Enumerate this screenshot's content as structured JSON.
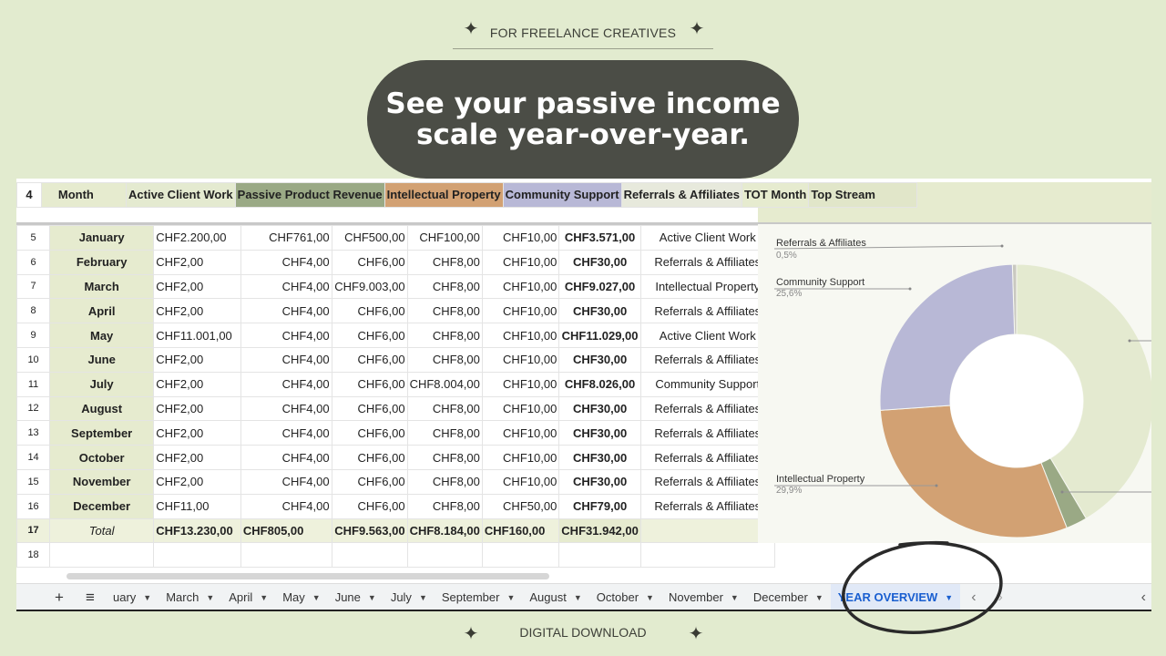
{
  "banner": {
    "top_label": "FOR FREELANCE CREATIVES",
    "headline_line1": "See your passive income",
    "headline_line2": "scale year-over-year.",
    "bottom_label": "DIGITAL DOWNLOAD"
  },
  "sheet": {
    "header_row_number": "4",
    "headers": [
      "Month",
      "Active Client Work",
      "Passive Product Revenue",
      "Intellectual Property",
      "Community Support",
      "Referrals & Affiliates",
      "TOT Month",
      "Top Stream"
    ],
    "rows": [
      {
        "n": "5",
        "month": "January",
        "active": "CHF2.200,00",
        "passive": "CHF761,00",
        "ip": "CHF500,00",
        "community": "CHF100,00",
        "referrals": "CHF10,00",
        "tot": "CHF3.571,00",
        "top": "Active Client Work"
      },
      {
        "n": "6",
        "month": "February",
        "active": "CHF2,00",
        "passive": "CHF4,00",
        "ip": "CHF6,00",
        "community": "CHF8,00",
        "referrals": "CHF10,00",
        "tot": "CHF30,00",
        "top": "Referrals & Affiliates"
      },
      {
        "n": "7",
        "month": "March",
        "active": "CHF2,00",
        "passive": "CHF4,00",
        "ip": "CHF9.003,00",
        "community": "CHF8,00",
        "referrals": "CHF10,00",
        "tot": "CHF9.027,00",
        "top": "Intellectual Property"
      },
      {
        "n": "8",
        "month": "April",
        "active": "CHF2,00",
        "passive": "CHF4,00",
        "ip": "CHF6,00",
        "community": "CHF8,00",
        "referrals": "CHF10,00",
        "tot": "CHF30,00",
        "top": "Referrals & Affiliates"
      },
      {
        "n": "9",
        "month": "May",
        "active": "CHF11.001,00",
        "passive": "CHF4,00",
        "ip": "CHF6,00",
        "community": "CHF8,00",
        "referrals": "CHF10,00",
        "tot": "CHF11.029,00",
        "top": "Active Client Work"
      },
      {
        "n": "10",
        "month": "June",
        "active": "CHF2,00",
        "passive": "CHF4,00",
        "ip": "CHF6,00",
        "community": "CHF8,00",
        "referrals": "CHF10,00",
        "tot": "CHF30,00",
        "top": "Referrals & Affiliates"
      },
      {
        "n": "11",
        "month": "July",
        "active": "CHF2,00",
        "passive": "CHF4,00",
        "ip": "CHF6,00",
        "community": "CHF8.004,00",
        "referrals": "CHF10,00",
        "tot": "CHF8.026,00",
        "top": "Community Support"
      },
      {
        "n": "12",
        "month": "August",
        "active": "CHF2,00",
        "passive": "CHF4,00",
        "ip": "CHF6,00",
        "community": "CHF8,00",
        "referrals": "CHF10,00",
        "tot": "CHF30,00",
        "top": "Referrals & Affiliates"
      },
      {
        "n": "13",
        "month": "September",
        "active": "CHF2,00",
        "passive": "CHF4,00",
        "ip": "CHF6,00",
        "community": "CHF8,00",
        "referrals": "CHF10,00",
        "tot": "CHF30,00",
        "top": "Referrals & Affiliates"
      },
      {
        "n": "14",
        "month": "October",
        "active": "CHF2,00",
        "passive": "CHF4,00",
        "ip": "CHF6,00",
        "community": "CHF8,00",
        "referrals": "CHF10,00",
        "tot": "CHF30,00",
        "top": "Referrals & Affiliates"
      },
      {
        "n": "15",
        "month": "November",
        "active": "CHF2,00",
        "passive": "CHF4,00",
        "ip": "CHF6,00",
        "community": "CHF8,00",
        "referrals": "CHF10,00",
        "tot": "CHF30,00",
        "top": "Referrals & Affiliates"
      },
      {
        "n": "16",
        "month": "December",
        "active": "CHF11,00",
        "passive": "CHF4,00",
        "ip": "CHF6,00",
        "community": "CHF8,00",
        "referrals": "CHF50,00",
        "tot": "CHF79,00",
        "top": "Referrals & Affiliates"
      }
    ],
    "total": {
      "n": "17",
      "label": "Total",
      "active": "CHF13.230,00",
      "passive": "CHF805,00",
      "ip": "CHF9.563,00",
      "community": "CHF8.184,00",
      "referrals": "CHF160,00",
      "tot": "CHF31.942,00"
    },
    "empty_row_number": "18"
  },
  "chart_data": {
    "type": "pie",
    "labels": [
      "Referrals & Affiliates",
      "Community Support",
      "Intellectual Property"
    ],
    "values": [
      0.5,
      25.6,
      29.9
    ],
    "display": [
      "0,5%",
      "25,6%",
      "29,9%"
    ]
  },
  "chart_colors": {
    "passive": "#9aa985",
    "ip": "#d2a173",
    "community": "#b8b8d6",
    "active": "#e4ead0"
  },
  "tabs": {
    "items": [
      "uary",
      "March",
      "April",
      "May",
      "June",
      "July",
      "September",
      "August",
      "October",
      "November",
      "December",
      "YEAR OVERVIEW"
    ],
    "active": "YEAR OVERVIEW"
  },
  "icons": {
    "add": "+",
    "menu": "≡",
    "prev": "‹",
    "next": "›"
  }
}
